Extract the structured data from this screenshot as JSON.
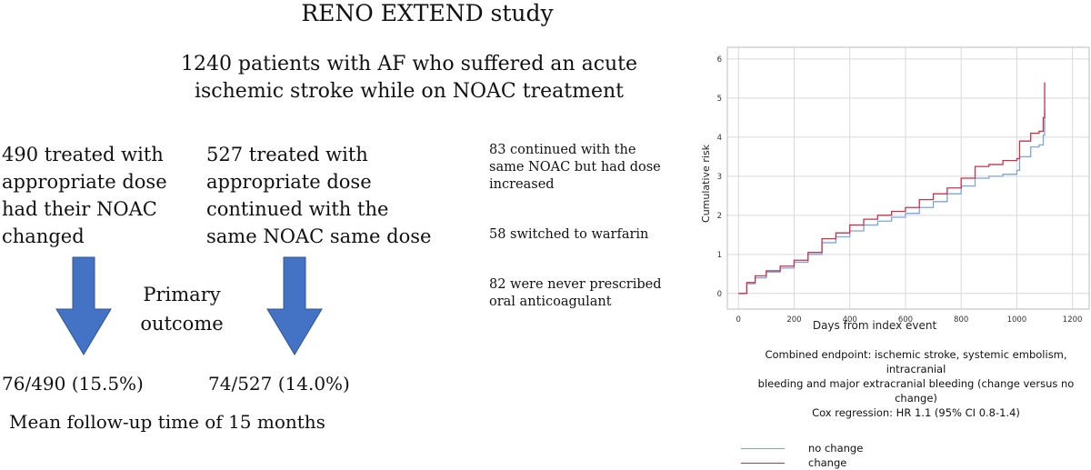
{
  "header": {
    "title": "RENO EXTEND study",
    "subtitle_line1": "1240 patients with AF who suffered an acute",
    "subtitle_line2": "ischemic stroke while on NOAC treatment"
  },
  "groups": {
    "changed": {
      "lines": [
        "490 treated with",
        "appropriate dose",
        "had their NOAC",
        "changed"
      ],
      "result": "76/490 (15.5%)"
    },
    "continued": {
      "lines": [
        "527 treated with",
        "appropriate dose",
        "continued with the",
        "same  NOAC same dose"
      ],
      "result": "74/527 (14.0%)"
    }
  },
  "primary_outcome": {
    "line1": "Primary",
    "line2": "outcome"
  },
  "followup": "Mean follow-up time of 15 months",
  "side_notes": {
    "increased": [
      "83 continued with the",
      "same  NOAC but had dose",
      "increased"
    ],
    "warfarin": "58 switched to warfarin",
    "never": [
      "82 were never prescribed",
      "oral anticoagulant"
    ]
  },
  "colors": {
    "arrow": "#4472c4",
    "no_change": "#7aa6dc",
    "change": "#c8324b",
    "grid": "#d9d9d9"
  },
  "chart_data": {
    "type": "line",
    "xlabel": "Days from index event",
    "ylabel": "Cumulative risk",
    "xlim": [
      -40,
      1260
    ],
    "ylim": [
      -0.4,
      6.3
    ],
    "xticks": [
      0,
      200,
      400,
      600,
      800,
      1000,
      1200
    ],
    "yticks": [
      0,
      1,
      2,
      3,
      4,
      5,
      6
    ],
    "grid": true,
    "series": [
      {
        "name": "no change",
        "color_key": "no_change",
        "x": [
          0,
          30,
          60,
          100,
          150,
          200,
          250,
          300,
          350,
          400,
          450,
          500,
          550,
          600,
          650,
          700,
          750,
          800,
          850,
          900,
          950,
          1000,
          1010,
          1050,
          1080,
          1095,
          1100
        ],
        "y": [
          0,
          0.25,
          0.4,
          0.55,
          0.65,
          0.8,
          1.0,
          1.3,
          1.45,
          1.6,
          1.75,
          1.85,
          1.95,
          2.05,
          2.2,
          2.35,
          2.55,
          2.75,
          2.95,
          3.0,
          3.05,
          3.15,
          3.5,
          3.75,
          3.8,
          4.05,
          4.7
        ]
      },
      {
        "name": "change",
        "color_key": "change",
        "x": [
          0,
          30,
          60,
          100,
          150,
          200,
          250,
          300,
          350,
          400,
          450,
          500,
          550,
          600,
          650,
          700,
          750,
          800,
          850,
          900,
          950,
          1000,
          1010,
          1050,
          1080,
          1095,
          1100
        ],
        "y": [
          0,
          0.28,
          0.45,
          0.58,
          0.7,
          0.85,
          1.05,
          1.4,
          1.55,
          1.75,
          1.9,
          2.0,
          2.1,
          2.2,
          2.4,
          2.55,
          2.7,
          2.95,
          3.25,
          3.3,
          3.4,
          3.45,
          3.9,
          4.1,
          4.15,
          4.5,
          5.4
        ]
      }
    ],
    "caption": [
      "Combined endpoint: ischemic stroke, systemic embolism, intracranial",
      "bleeding and major extracranial bleeding (change versus no change)",
      "Cox regression: HR 1.1 (95% CI 0.8-1.4)"
    ]
  }
}
